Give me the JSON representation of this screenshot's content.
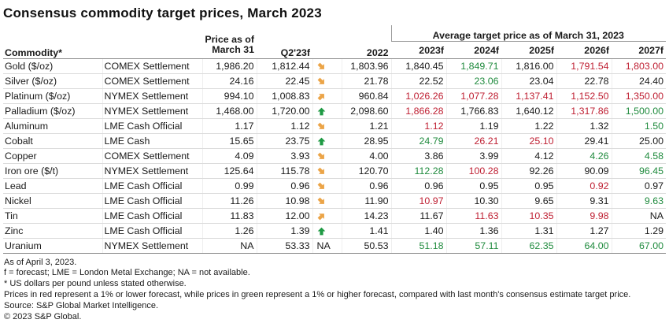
{
  "colors": {
    "red_forecast": "#bf2033",
    "green_forecast": "#208b3e",
    "trend_orange": "#eba447",
    "trend_green": "#1f9a44"
  },
  "chart_data": {
    "type": "table",
    "title": "Consensus commodity target prices, March 2023",
    "group_header": "Average target price as of March 31, 2023",
    "headers": {
      "commodity": "Commodity*",
      "exchange": "",
      "price_line1": "Price as of",
      "price_line2": "March 31",
      "q2": "Q2'23f",
      "trend": "",
      "y2022": "2022",
      "forecasts": [
        "2023f",
        "2024f",
        "2025f",
        "2026f",
        "2027f"
      ]
    },
    "trend_legend": {
      "flat-down": "orange diagonal arrow pointing down-right",
      "flat-up": "orange diagonal arrow pointing up-right",
      "up": "green arrow pointing up",
      "na": "NA"
    },
    "rows": [
      {
        "name": "Gold ($/oz)",
        "exchange": "COMEX Settlement",
        "price_mar31": "1,986.20",
        "q2_23f": "1,812.44",
        "trend": "flat-down",
        "y2022": "1,803.96",
        "forecasts": [
          "1,840.45",
          "1,849.71",
          "1,816.00",
          "1,791.54",
          "1,803.00"
        ],
        "forecast_colors": [
          "black",
          "green",
          "black",
          "red",
          "red"
        ]
      },
      {
        "name": "Silver ($/oz)",
        "exchange": "COMEX Settlement",
        "price_mar31": "24.16",
        "q2_23f": "22.45",
        "trend": "flat-down",
        "y2022": "21.78",
        "forecasts": [
          "22.52",
          "23.06",
          "23.04",
          "22.78",
          "24.40"
        ],
        "forecast_colors": [
          "black",
          "green",
          "black",
          "black",
          "black"
        ]
      },
      {
        "name": "Platinum ($/oz)",
        "exchange": "NYMEX Settlement",
        "price_mar31": "994.10",
        "q2_23f": "1,008.83",
        "trend": "flat-up",
        "y2022": "960.84",
        "forecasts": [
          "1,026.26",
          "1,077.28",
          "1,137.41",
          "1,152.50",
          "1,350.00"
        ],
        "forecast_colors": [
          "red",
          "red",
          "red",
          "red",
          "red"
        ]
      },
      {
        "name": "Palladium ($/oz)",
        "exchange": "NYMEX Settlement",
        "price_mar31": "1,468.00",
        "q2_23f": "1,720.00",
        "trend": "up",
        "y2022": "2,098.60",
        "forecasts": [
          "1,866.28",
          "1,766.83",
          "1,640.12",
          "1,317.86",
          "1,500.00"
        ],
        "forecast_colors": [
          "red",
          "black",
          "black",
          "red",
          "green"
        ]
      },
      {
        "name": "Aluminum",
        "exchange": "LME Cash Official",
        "price_mar31": "1.17",
        "q2_23f": "1.12",
        "trend": "flat-down",
        "y2022": "1.21",
        "forecasts": [
          "1.12",
          "1.19",
          "1.22",
          "1.32",
          "1.50"
        ],
        "forecast_colors": [
          "red",
          "black",
          "black",
          "black",
          "green"
        ]
      },
      {
        "name": "Cobalt",
        "exchange": "LME Cash",
        "price_mar31": "15.65",
        "q2_23f": "23.75",
        "trend": "up",
        "y2022": "28.95",
        "forecasts": [
          "24.79",
          "26.21",
          "25.10",
          "29.41",
          "25.00"
        ],
        "forecast_colors": [
          "green",
          "red",
          "red",
          "black",
          "black"
        ]
      },
      {
        "name": "Copper",
        "exchange": "COMEX Settlement",
        "price_mar31": "4.09",
        "q2_23f": "3.93",
        "trend": "flat-down",
        "y2022": "4.00",
        "forecasts": [
          "3.86",
          "3.99",
          "4.12",
          "4.26",
          "4.58"
        ],
        "forecast_colors": [
          "black",
          "black",
          "black",
          "green",
          "green"
        ]
      },
      {
        "name": "Iron ore ($/t)",
        "exchange": "NYMEX Settlement",
        "price_mar31": "125.64",
        "q2_23f": "115.78",
        "trend": "flat-down",
        "y2022": "120.70",
        "forecasts": [
          "112.28",
          "100.28",
          "92.26",
          "90.09",
          "96.45"
        ],
        "forecast_colors": [
          "green",
          "red",
          "black",
          "black",
          "green"
        ]
      },
      {
        "name": "Lead",
        "exchange": "LME Cash Official",
        "price_mar31": "0.99",
        "q2_23f": "0.96",
        "trend": "flat-down",
        "y2022": "0.96",
        "forecasts": [
          "0.96",
          "0.95",
          "0.95",
          "0.92",
          "0.97"
        ],
        "forecast_colors": [
          "black",
          "black",
          "black",
          "red",
          "black"
        ]
      },
      {
        "name": "Nickel",
        "exchange": "LME Cash Official",
        "price_mar31": "11.26",
        "q2_23f": "10.98",
        "trend": "flat-down",
        "y2022": "11.90",
        "forecasts": [
          "10.97",
          "10.30",
          "9.65",
          "9.31",
          "9.63"
        ],
        "forecast_colors": [
          "red",
          "black",
          "black",
          "black",
          "green"
        ]
      },
      {
        "name": "Tin",
        "exchange": "LME Cash Official",
        "price_mar31": "11.83",
        "q2_23f": "12.00",
        "trend": "flat-up",
        "y2022": "14.23",
        "forecasts": [
          "11.67",
          "11.63",
          "10.35",
          "9.98",
          "NA"
        ],
        "forecast_colors": [
          "black",
          "red",
          "red",
          "red",
          "black"
        ]
      },
      {
        "name": "Zinc",
        "exchange": "LME Cash Official",
        "price_mar31": "1.26",
        "q2_23f": "1.39",
        "trend": "up",
        "y2022": "1.41",
        "forecasts": [
          "1.40",
          "1.36",
          "1.31",
          "1.27",
          "1.29"
        ],
        "forecast_colors": [
          "black",
          "black",
          "black",
          "black",
          "black"
        ]
      },
      {
        "name": "Uranium",
        "exchange": "NYMEX Settlement",
        "price_mar31": "NA",
        "q2_23f": "53.33",
        "trend": "na",
        "y2022": "50.53",
        "forecasts": [
          "51.18",
          "57.11",
          "62.35",
          "64.00",
          "67.00"
        ],
        "forecast_colors": [
          "green",
          "green",
          "green",
          "green",
          "green"
        ]
      }
    ]
  },
  "footnotes": [
    "As of April 3, 2023.",
    "f = forecast; LME = London Metal Exchange; NA = not available.",
    "* US dollars per pound unless stated otherwise.",
    "Prices in red represent a 1% or lower forecast, while prices in green represent a 1% or higher forecast, compared with last month's consensus estimate target price.",
    "Source: S&P Global Market Intelligence.",
    "© 2023 S&P Global."
  ],
  "trend_na_label": "NA"
}
